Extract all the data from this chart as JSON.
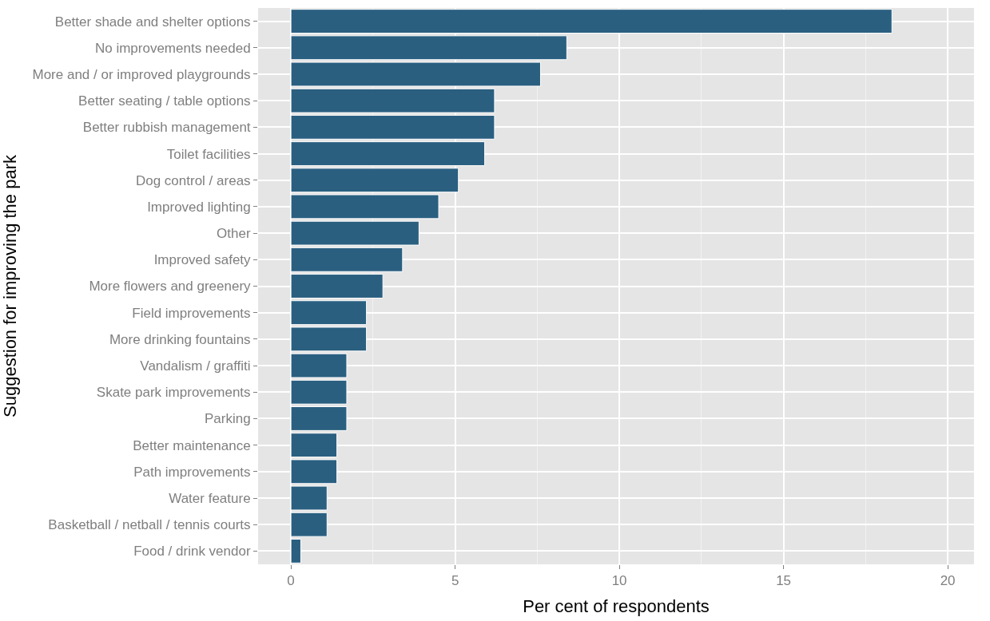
{
  "chart_data": {
    "type": "bar",
    "orientation": "horizontal",
    "xlabel": "Per cent of respondents",
    "ylabel": "Suggestion for improving the park",
    "categories": [
      "Better shade and shelter options",
      "No improvements needed",
      "More and / or improved playgrounds",
      "Better seating / table options",
      "Better rubbish management",
      "Toilet facilities",
      "Dog control / areas",
      "Improved lighting",
      "Other",
      "Improved safety",
      "More flowers and greenery",
      "Field improvements",
      "More drinking fountains",
      "Vandalism / graffiti",
      "Skate park improvements",
      "Parking",
      "Better maintenance",
      "Path improvements",
      "Water feature",
      "Basketball / netball / tennis courts",
      "Food / drink vendor"
    ],
    "values": [
      18.3,
      8.4,
      7.6,
      6.2,
      6.2,
      5.9,
      5.1,
      4.5,
      3.9,
      3.4,
      2.8,
      2.3,
      2.3,
      1.7,
      1.7,
      1.7,
      1.4,
      1.4,
      1.1,
      1.1,
      0.3
    ],
    "color": "#2a5f80",
    "xlim": [
      -1,
      20.8
    ],
    "xticks": [
      0,
      5,
      10,
      15,
      20
    ],
    "grid": true
  }
}
